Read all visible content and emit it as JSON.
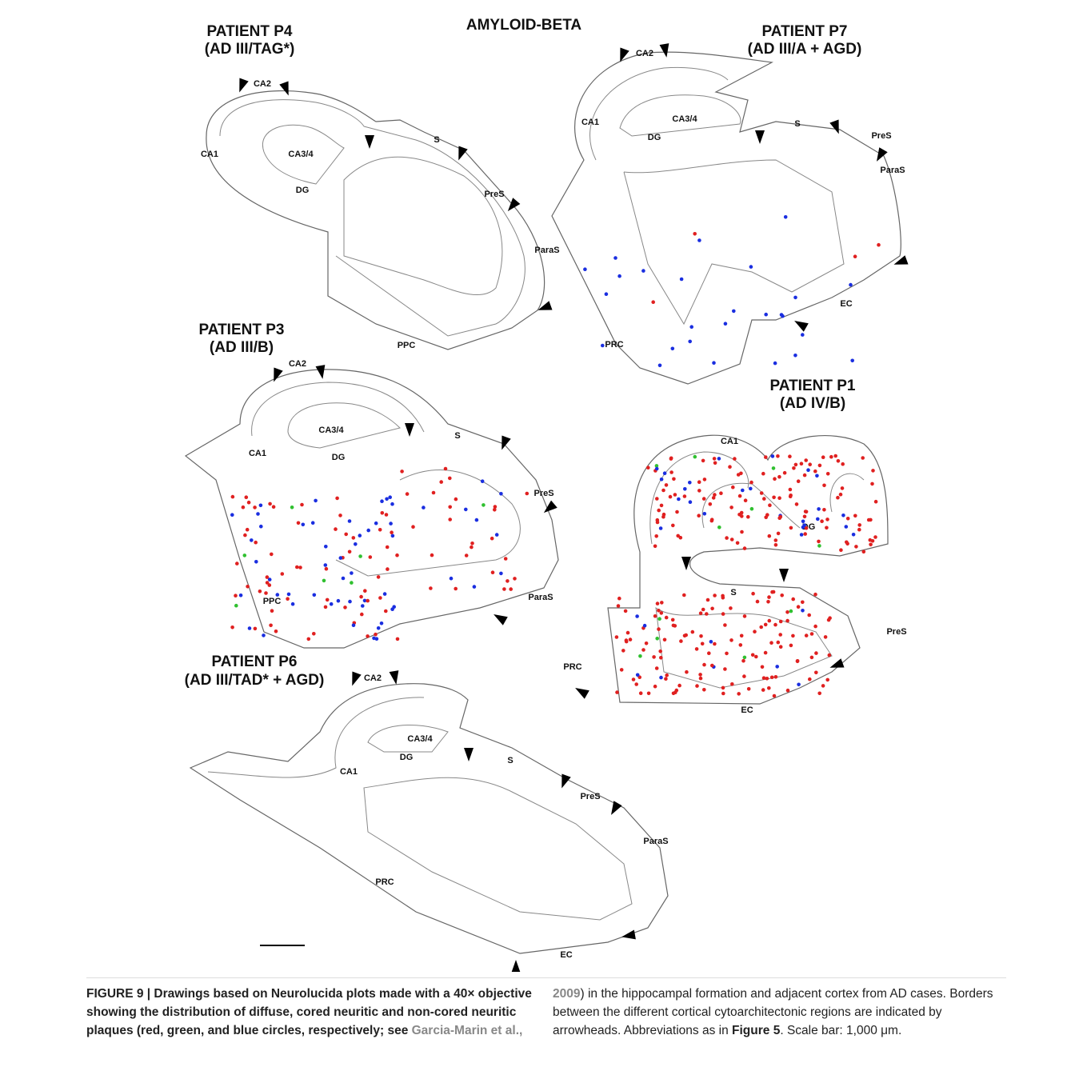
{
  "figure": {
    "title": "AMYLOID-BETA",
    "panels": [
      {
        "title": "PATIENT P4",
        "subtitle": "(AD III/TAG*)",
        "labels": [
          "CA2",
          "CA1",
          "CA3/4",
          "DG",
          "S",
          "PreS",
          "ParaS",
          "PPC"
        ]
      },
      {
        "title": "PATIENT P7",
        "subtitle": "(AD III/A + AGD)",
        "labels": [
          "CA2",
          "CA1",
          "CA3/4",
          "DG",
          "S",
          "PreS",
          "ParaS",
          "EC",
          "PRC"
        ]
      },
      {
        "title": "PATIENT P3",
        "subtitle": "(AD III/B)",
        "labels": [
          "CA2",
          "CA3/4",
          "CA1",
          "DG",
          "S",
          "PreS",
          "PPC",
          "ParaS"
        ]
      },
      {
        "title": "PATIENT P1",
        "subtitle": "(AD IV/B)",
        "labels": [
          "CA1",
          "DG",
          "S",
          "PreS",
          "PRC",
          "EC"
        ]
      },
      {
        "title": "PATIENT P6",
        "subtitle": "(AD III/TAD* + AGD)",
        "labels": [
          "CA2",
          "CA3/4",
          "DG",
          "S",
          "CA1",
          "PreS",
          "ParaS",
          "PRC",
          "EC"
        ]
      }
    ]
  },
  "caption": {
    "lead": "FIGURE 9 | Drawings based on Neurolucida plots made with a 40× objective showing the distribution of diffuse, cored neuritic and non-cored neuritic plaques (red, green, and blue circles, respectively; see ",
    "citation": "Garcia-Marin et al., 2009",
    "body": ") in the hippocampal formation and adjacent cortex from AD cases. Borders between the different cortical cytoarchitectonic regions are indicated by arrowheads. Abbreviations as in ",
    "figure_ref": "Figure 5",
    "tail": ". Scale bar: 1,000 μm."
  }
}
